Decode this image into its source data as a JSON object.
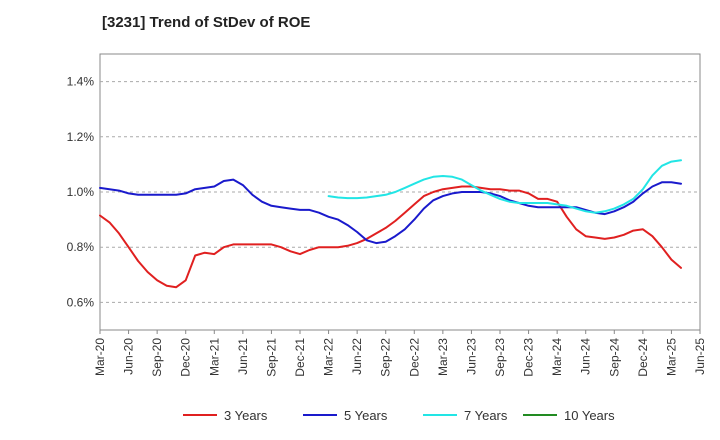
{
  "chart_data": {
    "type": "line",
    "title": "[3231]  Trend of StDev of ROE",
    "xlabel": "",
    "ylabel": "",
    "x_ticks": [
      "Mar-20",
      "Jun-20",
      "Sep-20",
      "Dec-20",
      "Mar-21",
      "Jun-21",
      "Sep-21",
      "Dec-21",
      "Mar-22",
      "Jun-22",
      "Sep-22",
      "Dec-22",
      "Mar-23",
      "Jun-23",
      "Sep-23",
      "Dec-23",
      "Mar-24",
      "Jun-24",
      "Sep-24",
      "Dec-24",
      "Mar-25",
      "Jun-25"
    ],
    "y_ticks": [
      "0.6%",
      "0.8%",
      "1.0%",
      "1.2%",
      "1.4%"
    ],
    "y_tick_values": [
      0.6,
      0.8,
      1.0,
      1.2,
      1.4
    ],
    "ylim": [
      0.5,
      1.5
    ],
    "x_range_months": [
      "Mar-20",
      "Jun-25"
    ],
    "grid": "horizontal-dashed",
    "legend_position": "bottom",
    "series": [
      {
        "name": "3 Years",
        "color": "#e02020",
        "start": "Mar-20",
        "values": [
          0.915,
          0.89,
          0.85,
          0.8,
          0.75,
          0.71,
          0.68,
          0.66,
          0.655,
          0.68,
          0.77,
          0.78,
          0.775,
          0.8,
          0.81,
          0.81,
          0.81,
          0.81,
          0.81,
          0.8,
          0.785,
          0.775,
          0.79,
          0.8,
          0.8,
          0.8,
          0.805,
          0.815,
          0.83,
          0.85,
          0.87,
          0.895,
          0.925,
          0.955,
          0.985,
          1.0,
          1.01,
          1.015,
          1.02,
          1.02,
          1.015,
          1.01,
          1.01,
          1.005,
          1.005,
          0.995,
          0.975,
          0.975,
          0.965,
          0.91,
          0.865,
          0.84,
          0.835,
          0.83,
          0.835,
          0.845,
          0.86,
          0.865,
          0.84,
          0.8,
          0.755,
          0.725
        ]
      },
      {
        "name": "5 Years",
        "color": "#1a1acc",
        "start": "Mar-20",
        "values": [
          1.015,
          1.01,
          1.005,
          0.995,
          0.99,
          0.99,
          0.99,
          0.99,
          0.99,
          0.995,
          1.01,
          1.015,
          1.02,
          1.04,
          1.045,
          1.025,
          0.99,
          0.965,
          0.95,
          0.945,
          0.94,
          0.935,
          0.935,
          0.925,
          0.91,
          0.9,
          0.88,
          0.855,
          0.825,
          0.815,
          0.82,
          0.84,
          0.865,
          0.9,
          0.94,
          0.97,
          0.985,
          0.995,
          1.0,
          1.0,
          1.0,
          0.995,
          0.985,
          0.97,
          0.96,
          0.95,
          0.945,
          0.945,
          0.945,
          0.945,
          0.945,
          0.935,
          0.925,
          0.92,
          0.93,
          0.945,
          0.965,
          0.995,
          1.02,
          1.035,
          1.035,
          1.03
        ]
      },
      {
        "name": "7 Years",
        "color": "#22e5e5",
        "start": "Mar-22",
        "values": [
          0.985,
          0.98,
          0.978,
          0.978,
          0.98,
          0.985,
          0.99,
          1.0,
          1.015,
          1.03,
          1.045,
          1.055,
          1.058,
          1.055,
          1.045,
          1.025,
          1.005,
          0.99,
          0.975,
          0.965,
          0.96,
          0.96,
          0.96,
          0.96,
          0.955,
          0.95,
          0.94,
          0.93,
          0.925,
          0.93,
          0.94,
          0.955,
          0.975,
          1.01,
          1.06,
          1.095,
          1.11,
          1.115
        ]
      },
      {
        "name": "10 Years",
        "color": "#228b22",
        "start": "Mar-22",
        "values": []
      }
    ]
  }
}
